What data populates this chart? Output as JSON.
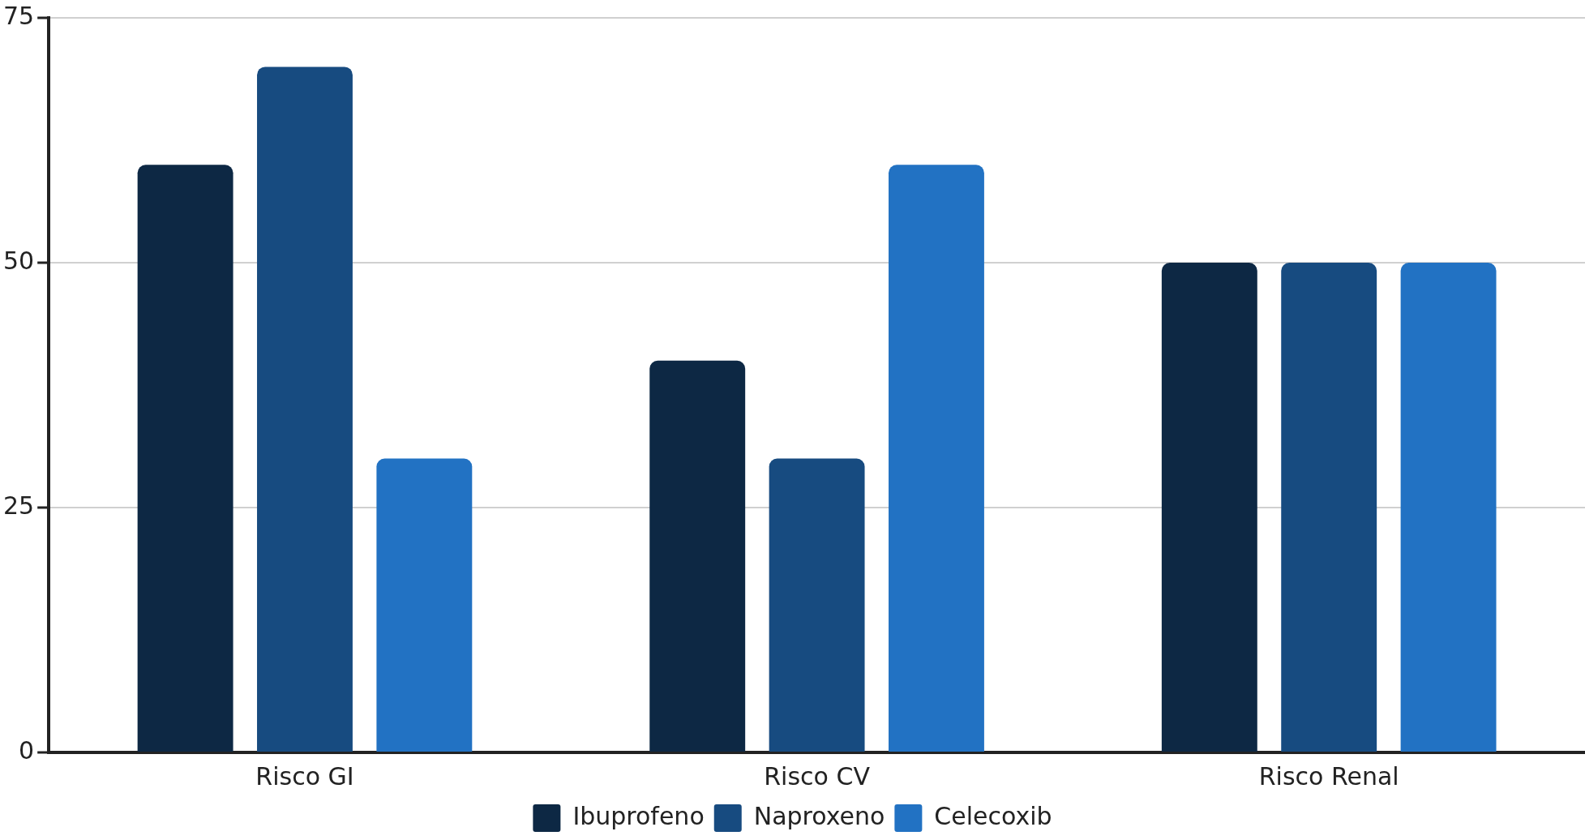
{
  "chart_data": {
    "type": "bar",
    "categories": [
      "Risco GI",
      "Risco CV",
      "Risco Renal"
    ],
    "series": [
      {
        "name": "Ibuprofeno",
        "color": "#0d2844",
        "values": [
          60,
          40,
          50
        ]
      },
      {
        "name": "Naproxeno",
        "color": "#174b80",
        "values": [
          70,
          30,
          50
        ]
      },
      {
        "name": "Celecoxib",
        "color": "#2272c3",
        "values": [
          30,
          60,
          50
        ]
      }
    ],
    "ylim": [
      0,
      75
    ],
    "yticks": [
      0,
      25,
      50,
      75
    ],
    "grid": "y",
    "legend": "bottom"
  }
}
